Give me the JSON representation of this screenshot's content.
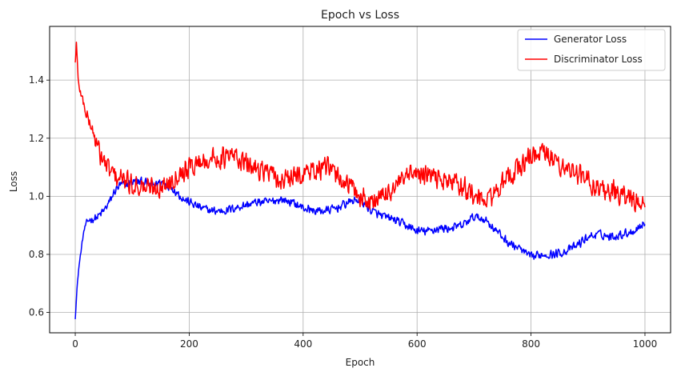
{
  "chart_data": {
    "type": "line",
    "title": "Epoch vs Loss",
    "xlabel": "Epoch",
    "ylabel": "Loss",
    "xlim": [
      -45,
      1045
    ],
    "ylim": [
      0.53,
      1.585
    ],
    "xticks": [
      0,
      200,
      400,
      600,
      800,
      1000
    ],
    "yticks": [
      0.6,
      0.8,
      1.0,
      1.2,
      1.4
    ],
    "xtick_labels": [
      "0",
      "200",
      "400",
      "600",
      "800",
      "1000"
    ],
    "ytick_labels": [
      "0.6",
      "0.8",
      "1.0",
      "1.2",
      "1.4"
    ],
    "grid": true,
    "legend_position": "top-right",
    "series": [
      {
        "name": "Generator Loss",
        "color": "#0000ff",
        "x": [
          0,
          3,
          6,
          10,
          15,
          20,
          25,
          30,
          40,
          50,
          60,
          70,
          80,
          90,
          100,
          110,
          120,
          130,
          140,
          150,
          160,
          170,
          180,
          190,
          200,
          220,
          240,
          260,
          280,
          300,
          320,
          340,
          360,
          380,
          400,
          420,
          440,
          460,
          480,
          500,
          520,
          540,
          560,
          580,
          600,
          620,
          640,
          660,
          680,
          700,
          720,
          740,
          760,
          780,
          800,
          820,
          840,
          860,
          880,
          900,
          920,
          940,
          960,
          980,
          1000
        ],
        "y": [
          0.58,
          0.68,
          0.75,
          0.81,
          0.88,
          0.91,
          0.92,
          0.92,
          0.93,
          0.95,
          0.98,
          1.02,
          1.04,
          1.04,
          1.05,
          1.05,
          1.05,
          1.04,
          1.04,
          1.05,
          1.04,
          1.03,
          1.01,
          0.99,
          0.98,
          0.96,
          0.95,
          0.95,
          0.96,
          0.97,
          0.98,
          0.98,
          0.99,
          0.98,
          0.96,
          0.95,
          0.95,
          0.96,
          0.98,
          0.99,
          0.95,
          0.93,
          0.92,
          0.9,
          0.88,
          0.88,
          0.89,
          0.89,
          0.9,
          0.93,
          0.92,
          0.88,
          0.84,
          0.82,
          0.79,
          0.8,
          0.8,
          0.81,
          0.83,
          0.86,
          0.87,
          0.86,
          0.87,
          0.88,
          0.91
        ],
        "noise": 0.018
      },
      {
        "name": "Discriminator Loss",
        "color": "#ff0000",
        "x": [
          0,
          2,
          5,
          10,
          15,
          20,
          30,
          40,
          50,
          60,
          70,
          80,
          90,
          100,
          110,
          120,
          140,
          160,
          180,
          200,
          220,
          240,
          260,
          280,
          300,
          320,
          340,
          360,
          380,
          400,
          420,
          440,
          460,
          480,
          500,
          520,
          540,
          560,
          580,
          600,
          620,
          640,
          660,
          680,
          700,
          720,
          740,
          760,
          780,
          800,
          820,
          840,
          860,
          880,
          900,
          920,
          940,
          960,
          980,
          1000
        ],
        "y": [
          1.46,
          1.53,
          1.4,
          1.35,
          1.32,
          1.28,
          1.23,
          1.16,
          1.12,
          1.09,
          1.07,
          1.06,
          1.05,
          1.04,
          1.04,
          1.03,
          1.03,
          1.04,
          1.08,
          1.1,
          1.12,
          1.13,
          1.13,
          1.14,
          1.11,
          1.1,
          1.08,
          1.05,
          1.06,
          1.08,
          1.09,
          1.1,
          1.07,
          1.04,
          1.0,
          0.98,
          1.0,
          1.03,
          1.06,
          1.08,
          1.07,
          1.06,
          1.05,
          1.04,
          1.0,
          0.98,
          1.02,
          1.06,
          1.1,
          1.14,
          1.15,
          1.12,
          1.1,
          1.08,
          1.05,
          1.03,
          1.02,
          1.0,
          0.99,
          0.96
        ],
        "noise": 0.045
      }
    ]
  }
}
